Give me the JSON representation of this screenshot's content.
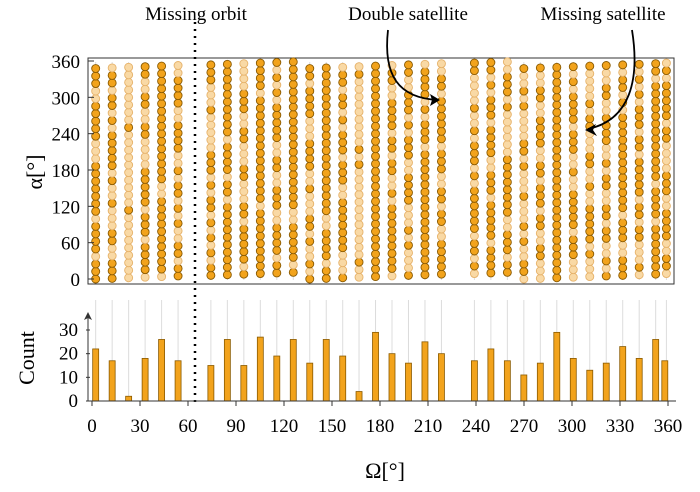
{
  "chart_data": [
    {
      "type": "scatter",
      "xlabel": "",
      "ylabel": "α[°]",
      "xlim": [
        0,
        360
      ],
      "ylim": [
        0,
        360
      ],
      "yticks": [
        "0",
        "60",
        "120",
        "180",
        "240",
        "300",
        "360"
      ],
      "grid": "vertical lines at each orbit",
      "colors": {
        "active": "#f2a31c",
        "active_edge": "#8a5a00",
        "empty": "#f9d9a5",
        "empty_edge": "#e6b26a"
      },
      "annotations": [
        {
          "text": "Missing orbit",
          "x": 63
        },
        {
          "text": "Double satellite",
          "x": 210,
          "y": 295
        },
        {
          "text": "Missing satellite",
          "x": 300,
          "y": 245
        }
      ],
      "orbits": [
        {
          "omega": 2.3,
          "count": 22
        },
        {
          "omega": 12.6,
          "count": 17
        },
        {
          "omega": 22.9,
          "count": 2
        },
        {
          "omega": 33.2,
          "count": 18
        },
        {
          "omega": 43.5,
          "count": 26
        },
        {
          "omega": 53.8,
          "count": 17
        },
        {
          "omega": 74.3,
          "count": 15
        },
        {
          "omega": 84.6,
          "count": 26
        },
        {
          "omega": 94.9,
          "count": 15
        },
        {
          "omega": 105.2,
          "count": 27
        },
        {
          "omega": 115.5,
          "count": 19
        },
        {
          "omega": 125.8,
          "count": 26
        },
        {
          "omega": 136.1,
          "count": 16
        },
        {
          "omega": 146.4,
          "count": 26
        },
        {
          "omega": 156.7,
          "count": 19
        },
        {
          "omega": 166.9,
          "count": 4
        },
        {
          "omega": 177.2,
          "count": 29
        },
        {
          "omega": 187.5,
          "count": 20
        },
        {
          "omega": 197.8,
          "count": 16
        },
        {
          "omega": 208.1,
          "count": 25
        },
        {
          "omega": 218.4,
          "count": 20
        },
        {
          "omega": 239.0,
          "count": 17
        },
        {
          "omega": 249.3,
          "count": 22
        },
        {
          "omega": 259.6,
          "count": 17
        },
        {
          "omega": 269.9,
          "count": 11
        },
        {
          "omega": 280.2,
          "count": 16
        },
        {
          "omega": 290.5,
          "count": 29
        },
        {
          "omega": 300.8,
          "count": 18
        },
        {
          "omega": 311.1,
          "count": 13
        },
        {
          "omega": 321.4,
          "count": 16
        },
        {
          "omega": 331.7,
          "count": 23
        },
        {
          "omega": 342.0,
          "count": 18
        },
        {
          "omega": 352.3,
          "count": 26
        },
        {
          "omega": 362.6,
          "count": 17
        }
      ]
    },
    {
      "type": "bar",
      "xlabel": "Ω[°]",
      "ylabel": "Count",
      "xlim": [
        0,
        360
      ],
      "ylim": [
        0,
        35
      ],
      "xticks": [
        "0",
        "30",
        "60",
        "90",
        "120",
        "150",
        "180",
        "210",
        "240",
        "270",
        "300",
        "330",
        "360"
      ],
      "yticks": [
        "0",
        "10",
        "20",
        "30"
      ],
      "series": [
        {
          "values_from": "orbits.count"
        }
      ]
    }
  ]
}
